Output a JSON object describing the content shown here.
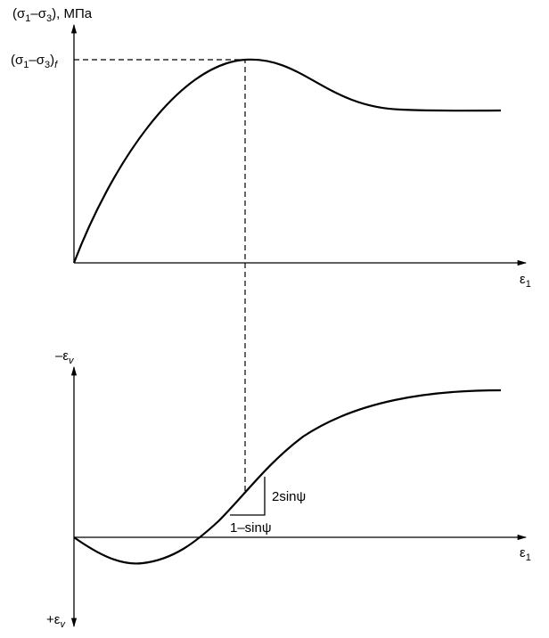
{
  "top_chart": {
    "y_axis_label": [
      "(σ",
      "1",
      "–σ",
      "3",
      "), МПа"
    ],
    "peak_label": [
      "(σ",
      "1",
      "–σ",
      "3",
      ")",
      "f"
    ],
    "x_axis_label": [
      "ε",
      "1"
    ]
  },
  "bottom_chart": {
    "y_axis_top_label": [
      "–ε",
      "v"
    ],
    "y_axis_bottom_label": [
      "+ε",
      "v"
    ],
    "x_axis_label": [
      "ε",
      "1"
    ],
    "rise_label": "2sinψ",
    "run_label": "1–sinψ"
  }
}
